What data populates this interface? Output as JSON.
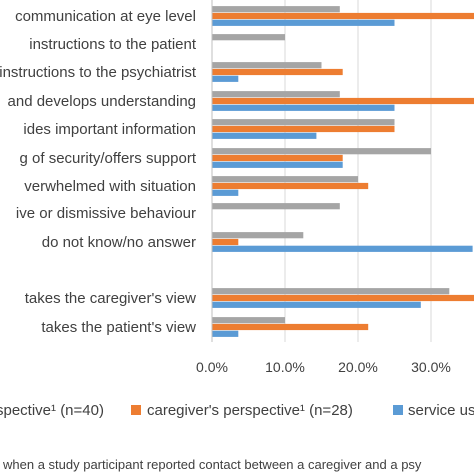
{
  "chart_data": {
    "type": "bar",
    "orientation": "horizontal",
    "categories": [
      "communication at eye level",
      "instructions to the patient",
      "instructions to the psychiatrist",
      "and develops understanding",
      "ides important information",
      "g of security/offers support",
      "verwhelmed with situation",
      "ive or dismissive behaviour",
      "do not know/no answer",
      "",
      "takes the caregiver's view",
      "takes the patient's view"
    ],
    "series": [
      {
        "name": "spective¹ (n=40)",
        "color": "#a5a5a5",
        "values": [
          17.5,
          10,
          15,
          17.5,
          25,
          30,
          20,
          17.5,
          12.5,
          null,
          32.5,
          10
        ]
      },
      {
        "name": "caregiver's perspective¹ (n=28)",
        "color": "#ed7d31",
        "values": [
          39.3,
          0,
          17.9,
          39.3,
          25,
          17.9,
          21.4,
          0,
          3.6,
          null,
          39.3,
          21.4
        ]
      },
      {
        "name": "service us",
        "color": "#5b9bd5",
        "values": [
          25,
          0,
          3.6,
          25,
          14.3,
          17.9,
          3.6,
          0,
          35.7,
          null,
          28.6,
          3.6
        ]
      }
    ],
    "xlim": [
      0,
      40
    ],
    "xticks": [
      0,
      10,
      20,
      30
    ],
    "xtick_labels": [
      "0.0%",
      "10.0%",
      "20.0%",
      "30.0%"
    ],
    "grid": true,
    "legend_position": "bottom"
  },
  "footnote": "when a study participant reported contact between a caregiver and a psy"
}
